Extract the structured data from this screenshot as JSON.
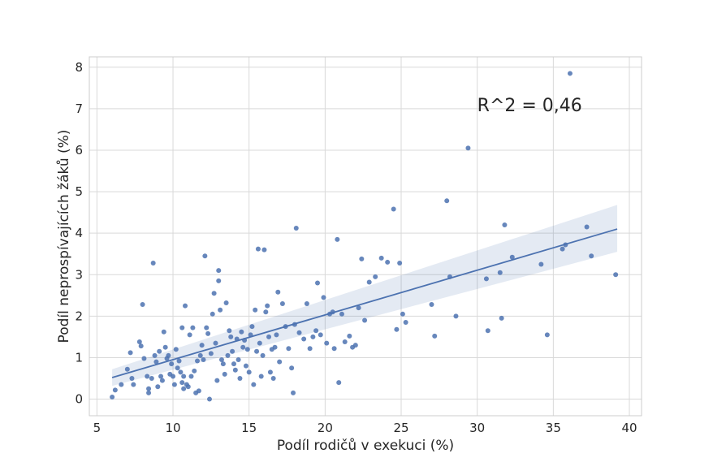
{
  "chart_data": {
    "type": "scatter",
    "title": "",
    "xlabel": "Podíl rodičů v exekuci (%)",
    "ylabel": "Podíl neprospívajících žáků (%)",
    "xlim": [
      4.5,
      40.8
    ],
    "ylim": [
      -0.4,
      8.25
    ],
    "xticks": [
      5,
      10,
      15,
      20,
      25,
      30,
      35,
      40
    ],
    "yticks": [
      0,
      1,
      2,
      3,
      4,
      5,
      6,
      7,
      8
    ],
    "grid": true,
    "legend": "none",
    "annotation": "R^2 = 0,46",
    "annotation_anchor": {
      "x": 30.0,
      "y": 7.1
    },
    "point_color": "#4c72b0",
    "regression": {
      "x_range": [
        6.0,
        39.2
      ],
      "y_start": 0.52,
      "y_end": 4.1,
      "ci_start": [
        0.32,
        0.72
      ],
      "ci_end": [
        3.55,
        4.68
      ]
    },
    "points": [
      [
        6.0,
        0.05
      ],
      [
        6.2,
        0.22
      ],
      [
        6.6,
        0.35
      ],
      [
        7.0,
        0.72
      ],
      [
        7.2,
        1.12
      ],
      [
        7.3,
        0.5
      ],
      [
        7.4,
        0.35
      ],
      [
        7.8,
        1.38
      ],
      [
        7.9,
        1.28
      ],
      [
        8.0,
        2.28
      ],
      [
        8.1,
        0.98
      ],
      [
        8.3,
        0.55
      ],
      [
        8.4,
        0.25
      ],
      [
        8.4,
        0.15
      ],
      [
        8.6,
        0.5
      ],
      [
        8.7,
        3.28
      ],
      [
        8.8,
        1.05
      ],
      [
        8.9,
        0.9
      ],
      [
        9.0,
        0.3
      ],
      [
        9.1,
        1.15
      ],
      [
        9.2,
        0.55
      ],
      [
        9.3,
        0.45
      ],
      [
        9.4,
        1.62
      ],
      [
        9.5,
        1.25
      ],
      [
        9.6,
        0.98
      ],
      [
        9.7,
        1.05
      ],
      [
        9.8,
        0.6
      ],
      [
        9.9,
        0.85
      ],
      [
        10.0,
        0.55
      ],
      [
        10.1,
        0.35
      ],
      [
        10.2,
        1.2
      ],
      [
        10.3,
        0.75
      ],
      [
        10.4,
        0.92
      ],
      [
        10.5,
        0.65
      ],
      [
        10.6,
        0.4
      ],
      [
        10.6,
        1.72
      ],
      [
        10.7,
        0.55
      ],
      [
        10.7,
        0.25
      ],
      [
        10.8,
        2.25
      ],
      [
        10.9,
        0.35
      ],
      [
        11.0,
        0.3
      ],
      [
        11.1,
        1.55
      ],
      [
        11.2,
        0.55
      ],
      [
        11.3,
        1.72
      ],
      [
        11.4,
        0.68
      ],
      [
        11.5,
        0.15
      ],
      [
        11.6,
        0.92
      ],
      [
        11.7,
        0.2
      ],
      [
        11.8,
        1.05
      ],
      [
        11.9,
        1.3
      ],
      [
        12.0,
        0.95
      ],
      [
        12.1,
        3.45
      ],
      [
        12.2,
        1.72
      ],
      [
        12.3,
        1.58
      ],
      [
        12.4,
        0.0
      ],
      [
        12.5,
        1.1
      ],
      [
        12.6,
        2.05
      ],
      [
        12.7,
        2.55
      ],
      [
        12.8,
        1.35
      ],
      [
        12.9,
        0.45
      ],
      [
        13.0,
        3.1
      ],
      [
        13.0,
        2.85
      ],
      [
        13.1,
        2.15
      ],
      [
        13.2,
        0.95
      ],
      [
        13.3,
        0.85
      ],
      [
        13.4,
        0.6
      ],
      [
        13.5,
        2.32
      ],
      [
        13.6,
        1.05
      ],
      [
        13.7,
        1.65
      ],
      [
        13.8,
        1.5
      ],
      [
        13.9,
        1.15
      ],
      [
        14.0,
        0.85
      ],
      [
        14.1,
        0.7
      ],
      [
        14.2,
        1.45
      ],
      [
        14.3,
        0.95
      ],
      [
        14.4,
        0.5
      ],
      [
        14.5,
        1.62
      ],
      [
        14.6,
        1.25
      ],
      [
        14.7,
        1.42
      ],
      [
        14.8,
        0.8
      ],
      [
        14.9,
        1.2
      ],
      [
        15.0,
        0.65
      ],
      [
        15.1,
        1.55
      ],
      [
        15.2,
        1.75
      ],
      [
        15.3,
        0.35
      ],
      [
        15.4,
        2.15
      ],
      [
        15.5,
        1.15
      ],
      [
        15.6,
        3.62
      ],
      [
        15.7,
        1.35
      ],
      [
        15.8,
        0.55
      ],
      [
        15.9,
        1.05
      ],
      [
        16.0,
        3.6
      ],
      [
        16.1,
        2.1
      ],
      [
        16.2,
        2.25
      ],
      [
        16.3,
        1.5
      ],
      [
        16.4,
        0.65
      ],
      [
        16.5,
        1.2
      ],
      [
        16.6,
        0.5
      ],
      [
        16.7,
        1.25
      ],
      [
        16.8,
        1.55
      ],
      [
        16.9,
        2.58
      ],
      [
        17.0,
        0.9
      ],
      [
        17.2,
        2.3
      ],
      [
        17.4,
        1.75
      ],
      [
        17.6,
        1.22
      ],
      [
        17.8,
        0.75
      ],
      [
        17.9,
        0.15
      ],
      [
        18.0,
        1.8
      ],
      [
        18.1,
        4.12
      ],
      [
        18.3,
        1.6
      ],
      [
        18.6,
        1.45
      ],
      [
        18.8,
        2.3
      ],
      [
        19.0,
        1.22
      ],
      [
        19.2,
        1.5
      ],
      [
        19.4,
        1.65
      ],
      [
        19.5,
        2.8
      ],
      [
        19.7,
        1.55
      ],
      [
        19.9,
        2.45
      ],
      [
        20.1,
        1.35
      ],
      [
        20.3,
        2.05
      ],
      [
        20.5,
        2.1
      ],
      [
        20.6,
        1.22
      ],
      [
        20.8,
        3.85
      ],
      [
        20.9,
        0.4
      ],
      [
        21.1,
        2.05
      ],
      [
        21.3,
        1.38
      ],
      [
        21.6,
        1.52
      ],
      [
        21.8,
        1.25
      ],
      [
        22.0,
        1.3
      ],
      [
        22.2,
        2.2
      ],
      [
        22.4,
        3.38
      ],
      [
        22.6,
        1.9
      ],
      [
        22.9,
        2.82
      ],
      [
        23.3,
        2.95
      ],
      [
        23.7,
        3.4
      ],
      [
        24.1,
        3.3
      ],
      [
        24.5,
        4.58
      ],
      [
        24.7,
        1.68
      ],
      [
        24.9,
        3.28
      ],
      [
        25.1,
        2.05
      ],
      [
        25.3,
        1.85
      ],
      [
        27.0,
        2.28
      ],
      [
        27.2,
        1.52
      ],
      [
        28.0,
        4.78
      ],
      [
        28.2,
        2.95
      ],
      [
        28.6,
        2.0
      ],
      [
        29.4,
        6.05
      ],
      [
        30.6,
        2.9
      ],
      [
        30.7,
        1.65
      ],
      [
        31.5,
        3.05
      ],
      [
        31.6,
        1.95
      ],
      [
        31.8,
        4.2
      ],
      [
        32.3,
        3.42
      ],
      [
        34.2,
        3.25
      ],
      [
        34.6,
        1.55
      ],
      [
        35.6,
        3.62
      ],
      [
        35.8,
        3.72
      ],
      [
        36.1,
        7.85
      ],
      [
        37.2,
        4.15
      ],
      [
        37.5,
        3.45
      ],
      [
        39.1,
        3.0
      ]
    ]
  }
}
